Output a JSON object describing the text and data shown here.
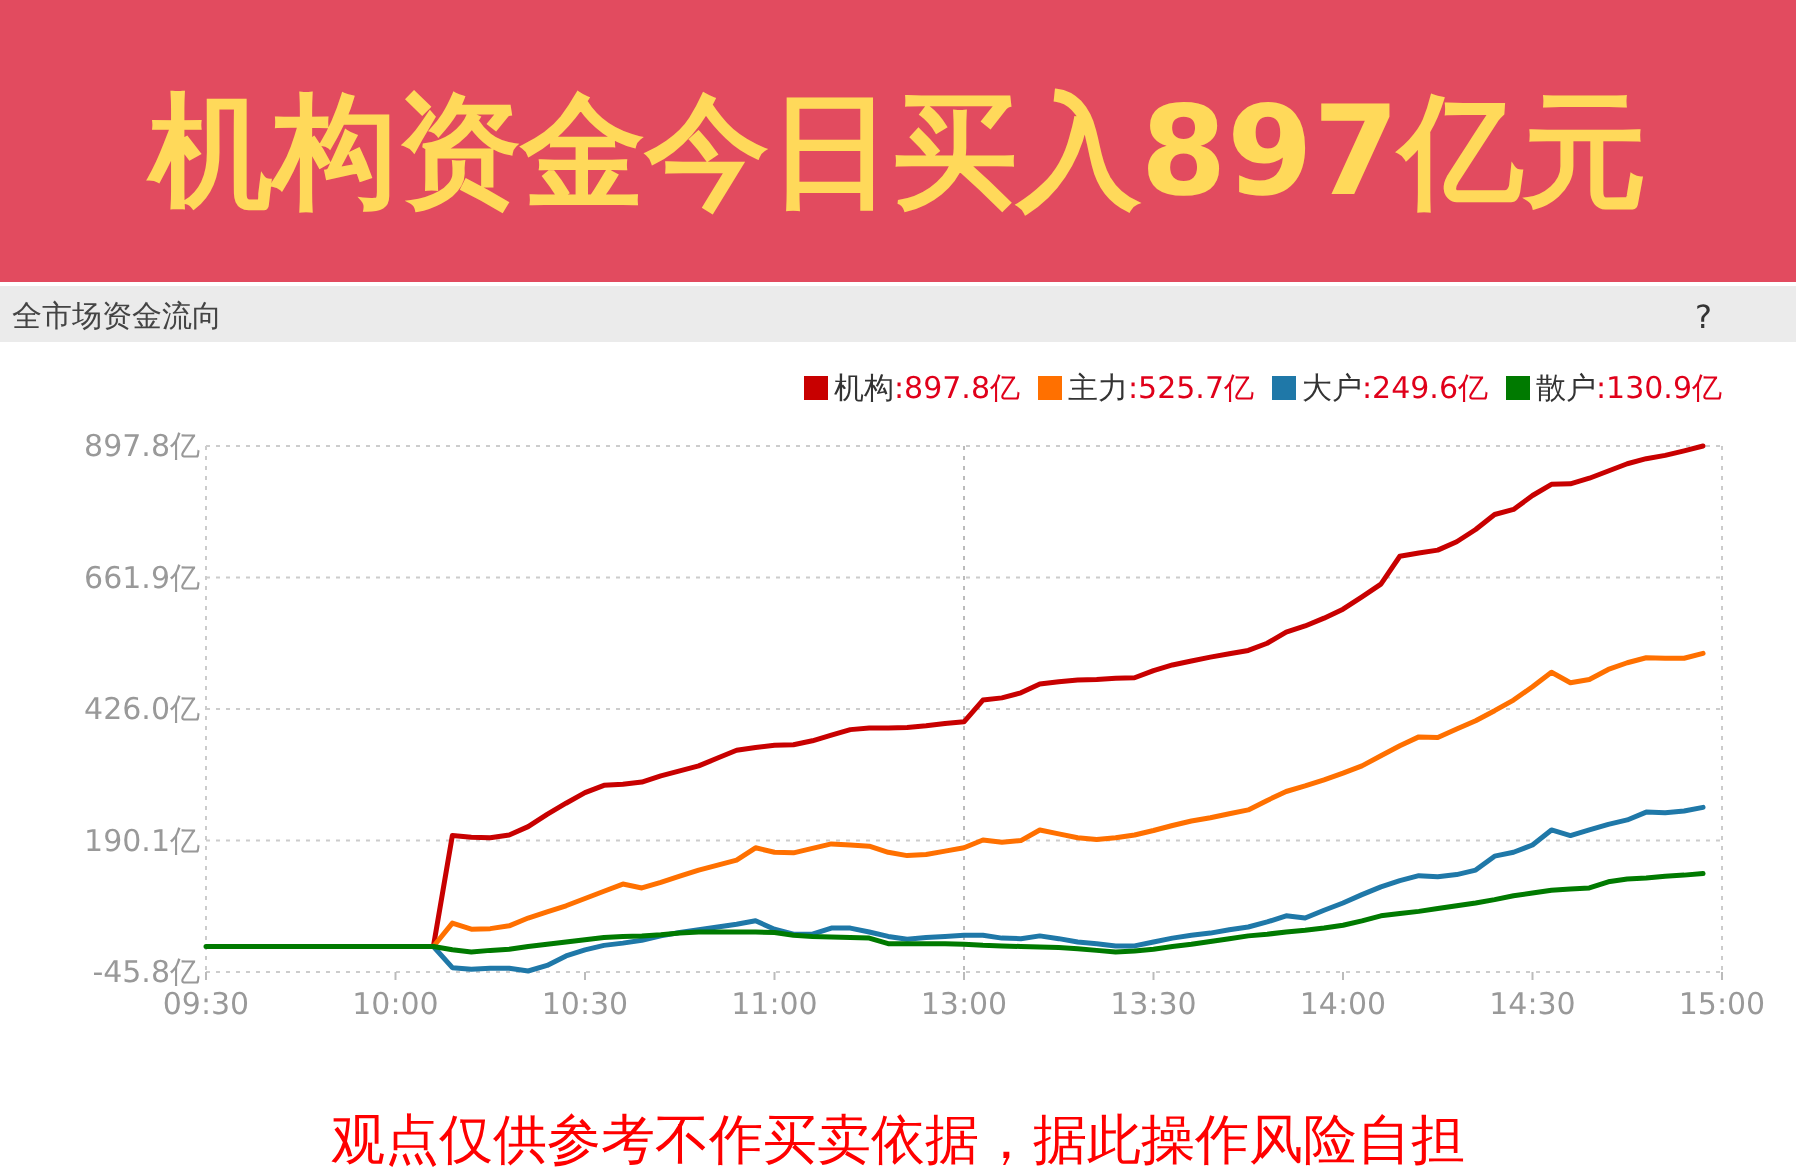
{
  "chart_data": {
    "type": "line",
    "title": "机构资金今日买入897亿元",
    "subtitle": "全市场资金流向",
    "annotations": [
      "?",
      "观点仅供参考不作买卖依据，据此操作风险自担"
    ],
    "categories": [
      "09:30",
      null,
      null,
      null,
      null,
      null,
      null,
      null,
      null,
      null,
      "10:00",
      null,
      null,
      null,
      null,
      null,
      null,
      null,
      null,
      null,
      "10:30",
      null,
      null,
      null,
      null,
      null,
      null,
      null,
      null,
      null,
      "11:00",
      null,
      null,
      null,
      null,
      null,
      null,
      null,
      null,
      null,
      "13:00",
      null,
      null,
      null,
      null,
      null,
      null,
      null,
      null,
      null,
      "13:30",
      null,
      null,
      null,
      null,
      null,
      null,
      null,
      null,
      null,
      "14:00",
      null,
      null,
      null,
      null,
      null,
      null,
      null,
      null,
      null,
      "14:30",
      null,
      null,
      null,
      null,
      null,
      null,
      null,
      null,
      null,
      "15:00"
    ],
    "ylim": [
      -45.8,
      897.8
    ],
    "yticks": [
      {
        "value": -45.8,
        "label": "-45.8亿"
      },
      {
        "value": 190.1,
        "label": "190.1亿"
      },
      {
        "value": 426.0,
        "label": "426.0亿"
      },
      {
        "value": 661.9,
        "label": "661.9亿"
      },
      {
        "value": 897.8,
        "label": "897.8亿"
      }
    ],
    "grid": "y",
    "legend": "top right",
    "line_style": "solid",
    "ref_lines": [
      {
        "axis": "x",
        "value": "13:00",
        "color": "#bbbbbb",
        "line_style": "dotted"
      }
    ],
    "series": [
      {
        "name": "机构:897.8亿",
        "color": "#c80000",
        "values": [
          null,
          null,
          null,
          null,
          null,
          null,
          null,
          null,
          null,
          null,
          null,
          null,
          0,
          199,
          196,
          195,
          200,
          215,
          237,
          257,
          276,
          289,
          291,
          295,
          306,
          315,
          324,
          338,
          352,
          357,
          361,
          362,
          369,
          379,
          389,
          392,
          392,
          393,
          396,
          400,
          403,
          442,
          446,
          455,
          471,
          475,
          478,
          479,
          481,
          482,
          495,
          505,
          512,
          519,
          525,
          531,
          544,
          564,
          575,
          589,
          605,
          627,
          650,
          700,
          706,
          711,
          726,
          748,
          775,
          784,
          809,
          829,
          830,
          840,
          853,
          866,
          875,
          881,
          889,
          897.8,
          null
        ]
      },
      {
        "name": "主力:525.7亿",
        "color": "#ff7000",
        "values": [
          null,
          null,
          null,
          null,
          null,
          null,
          null,
          null,
          null,
          null,
          null,
          null,
          0,
          42,
          31,
          32,
          37,
          51,
          62,
          73,
          86,
          99,
          112,
          105,
          115,
          126,
          137,
          146,
          155,
          177,
          169,
          168,
          176,
          184,
          182,
          180,
          169,
          163,
          165,
          171,
          177,
          191,
          187,
          190,
          209,
          202,
          195,
          192,
          195,
          200,
          208,
          217,
          225,
          231,
          238,
          245,
          262,
          278,
          288,
          299,
          311,
          324,
          342,
          360,
          376,
          375,
          390,
          405,
          423,
          442,
          466,
          492,
          473,
          479,
          497,
          509,
          518,
          517,
          517,
          525.7,
          null
        ]
      },
      {
        "name": "大户:249.6亿",
        "color": "#1f78a8",
        "values": [
          null,
          null,
          null,
          null,
          null,
          null,
          null,
          null,
          null,
          null,
          null,
          null,
          0,
          -38,
          -41,
          -39,
          -39,
          -44,
          -34,
          -17,
          -6,
          2,
          6,
          11,
          19,
          25,
          30,
          35,
          40,
          46,
          31,
          22,
          22,
          33,
          33,
          26,
          18,
          13,
          16,
          18,
          20,
          20,
          15,
          14,
          19,
          14,
          8,
          5,
          1,
          1,
          8,
          15,
          20,
          24,
          30,
          35,
          44,
          55,
          51,
          65,
          78,
          93,
          107,
          118,
          127,
          125,
          129,
          137,
          162,
          169,
          182,
          209,
          199,
          209,
          219,
          227,
          241,
          240,
          243,
          249.6,
          null
        ]
      },
      {
        "name": "散户:130.9亿",
        "color": "#007a00",
        "values": [
          0,
          0,
          0,
          0,
          0,
          0,
          0,
          0,
          0,
          0,
          0,
          0,
          0,
          -6,
          -10,
          -7,
          -5,
          0,
          4,
          8,
          12,
          16,
          18,
          19,
          21,
          24,
          26,
          26,
          26,
          26,
          25,
          20,
          18,
          17,
          16,
          15,
          5,
          5,
          5,
          5,
          4,
          2,
          1,
          0,
          -1,
          -2,
          -4,
          -7,
          -10,
          -8,
          -5,
          0,
          4,
          9,
          14,
          19,
          22,
          26,
          29,
          33,
          38,
          46,
          55,
          59,
          63,
          68,
          73,
          78,
          84,
          91,
          96,
          101,
          103,
          105,
          116,
          121,
          123,
          126,
          128,
          130.9,
          null
        ]
      }
    ]
  }
}
